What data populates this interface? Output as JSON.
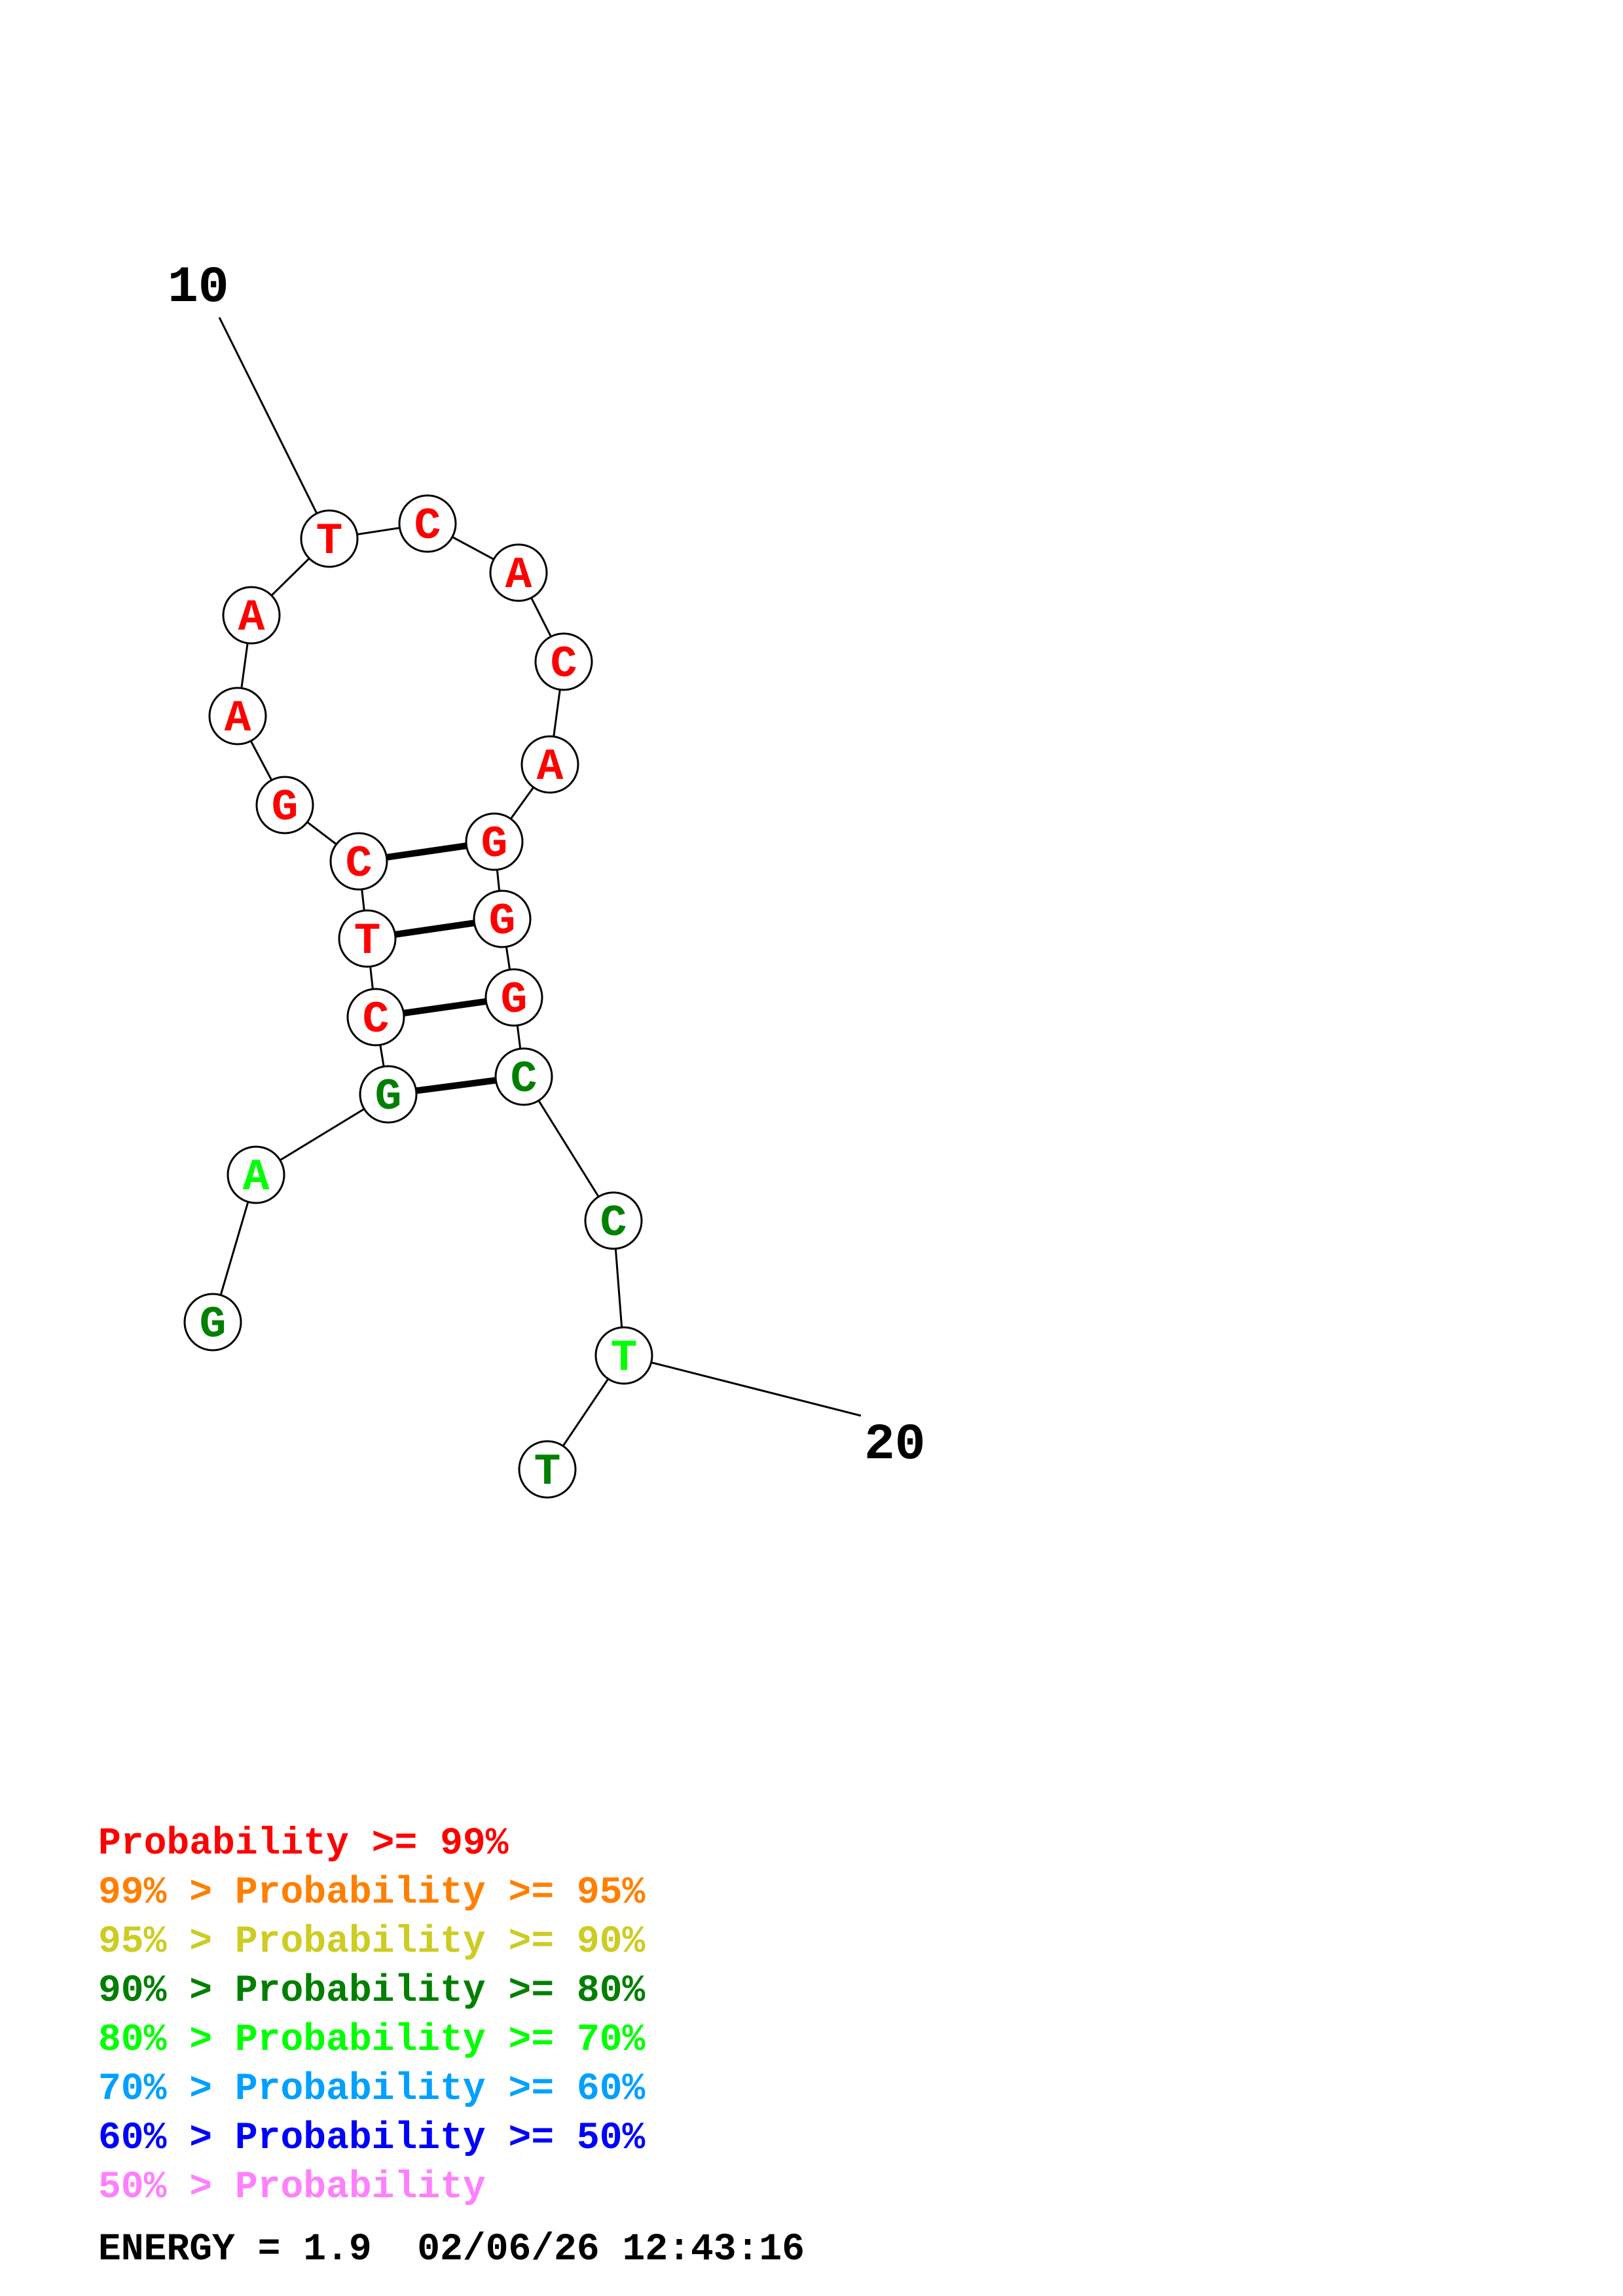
{
  "structure": {
    "start_label": "10",
    "end_label": "20",
    "bases": [
      {
        "letter": "G",
        "color": "#008000"
      },
      {
        "letter": "A",
        "color": "#00ff00"
      },
      {
        "letter": "G",
        "color": "#008000"
      },
      {
        "letter": "C",
        "color": "#ff0000"
      },
      {
        "letter": "T",
        "color": "#ff0000"
      },
      {
        "letter": "C",
        "color": "#ff0000"
      },
      {
        "letter": "G",
        "color": "#ff0000"
      },
      {
        "letter": "A",
        "color": "#ff0000"
      },
      {
        "letter": "A",
        "color": "#ff0000"
      },
      {
        "letter": "T",
        "color": "#ff0000"
      },
      {
        "letter": "C",
        "color": "#ff0000"
      },
      {
        "letter": "A",
        "color": "#ff0000"
      },
      {
        "letter": "C",
        "color": "#ff0000"
      },
      {
        "letter": "A",
        "color": "#ff0000"
      },
      {
        "letter": "G",
        "color": "#ff0000"
      },
      {
        "letter": "G",
        "color": "#ff0000"
      },
      {
        "letter": "G",
        "color": "#ff0000"
      },
      {
        "letter": "C",
        "color": "#008000"
      },
      {
        "letter": "C",
        "color": "#008000"
      },
      {
        "letter": "T",
        "color": "#00ff00"
      },
      {
        "letter": "T",
        "color": "#008000"
      }
    ],
    "pairs": [
      [
        2,
        17
      ],
      [
        3,
        16
      ],
      [
        4,
        15
      ],
      [
        5,
        14
      ]
    ]
  },
  "legend": [
    {
      "prefix": "",
      "text": "Probability >= 99%",
      "color": "#ff0000"
    },
    {
      "prefix": "99% > ",
      "text": "Probability >= 95%",
      "color": "#ff7f00"
    },
    {
      "prefix": "95% > ",
      "text": "Probability >= 90%",
      "color": "#cccc22"
    },
    {
      "prefix": "90% > ",
      "text": "Probability >= 80%",
      "color": "#007f00"
    },
    {
      "prefix": "80% > ",
      "text": "Probability >= 70%",
      "color": "#00ff00"
    },
    {
      "prefix": "70% > ",
      "text": "Probability >= 60%",
      "color": "#00a0ff"
    },
    {
      "prefix": "60% > ",
      "text": "Probability >= 50%",
      "color": "#0000ff"
    },
    {
      "prefix": "50% > ",
      "text": "Probability",
      "color": "#ff7fff"
    }
  ],
  "footer": {
    "energy": "ENERGY = 1.9",
    "timestamp": "02/06/26 12:43:16"
  }
}
